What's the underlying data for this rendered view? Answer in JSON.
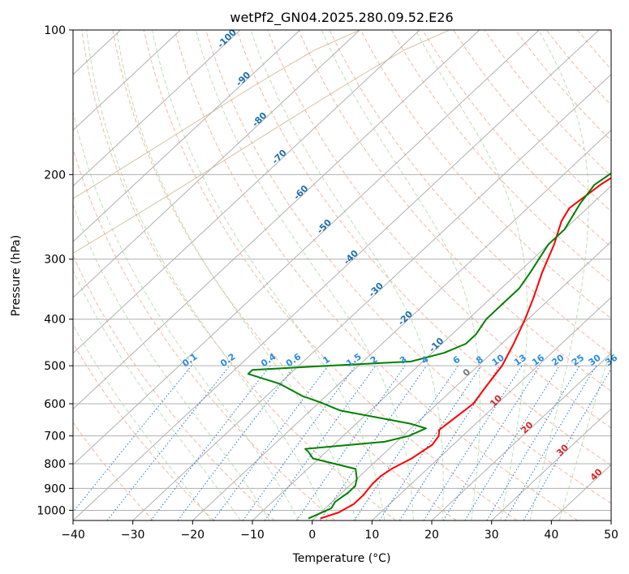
{
  "chart_data": {
    "type": "skew-t",
    "title": "wetPf2_GN04.2025.280.09.52.E26",
    "xlabel": "Temperature (°C)",
    "ylabel": "Pressure (hPa)",
    "xlim": [
      -40,
      50
    ],
    "ylim": [
      1050,
      100
    ],
    "x_ticks": [
      "-40",
      "-30",
      "-20",
      "-10",
      "0",
      "10",
      "20",
      "30",
      "40",
      "50"
    ],
    "y_ticks": [
      "100",
      "200",
      "300",
      "400",
      "500",
      "600",
      "700",
      "800",
      "900",
      "1000"
    ],
    "isotherm_labels": [
      "-100",
      "-90",
      "-80",
      "-70",
      "-60",
      "-50",
      "-40",
      "-30",
      "-20",
      "-10",
      "0",
      "10",
      "20",
      "30",
      "40"
    ],
    "mixing_ratio_labels": [
      "0.1",
      "0.2",
      "0.4",
      "0.6",
      "1",
      "1.5",
      "2",
      "3",
      "4",
      "6",
      "8",
      "10",
      "13",
      "16",
      "20",
      "25",
      "30",
      "36"
    ],
    "series": [
      {
        "name": "temperature",
        "color": "#ff0000",
        "points": [
          [
            1,
            1040
          ],
          [
            3,
            1010
          ],
          [
            4,
            970
          ],
          [
            4,
            930
          ],
          [
            3.5,
            880
          ],
          [
            3.5,
            850
          ],
          [
            4,
            820
          ],
          [
            5.5,
            780
          ],
          [
            6.5,
            730
          ],
          [
            6,
            700
          ],
          [
            5,
            680
          ],
          [
            5.5,
            640
          ],
          [
            6,
            600
          ],
          [
            5,
            550
          ],
          [
            4,
            500
          ],
          [
            2,
            450
          ],
          [
            -0.5,
            400
          ],
          [
            -3,
            360
          ],
          [
            -6,
            320
          ],
          [
            -9,
            280
          ],
          [
            -12,
            250
          ],
          [
            -13,
            235
          ],
          [
            -12,
            210
          ],
          [
            -11,
            198
          ],
          [
            -8,
            180
          ],
          [
            -4,
            155
          ],
          [
            0,
            135
          ],
          [
            3,
            120
          ],
          [
            5,
            110
          ],
          [
            7,
            100
          ]
        ]
      },
      {
        "name": "dewpoint",
        "color": "#008000",
        "points": [
          [
            -1,
            1040
          ],
          [
            0,
            1015
          ],
          [
            1,
            990
          ],
          [
            0.5,
            960
          ],
          [
            1,
            920
          ],
          [
            1,
            890
          ],
          [
            0,
            860
          ],
          [
            -2,
            820
          ],
          [
            -11,
            780
          ],
          [
            -13,
            755
          ],
          [
            -14,
            745
          ],
          [
            -2,
            720
          ],
          [
            1,
            700
          ],
          [
            2.5,
            675
          ],
          [
            -1,
            660
          ],
          [
            -15,
            620
          ],
          [
            -20,
            595
          ],
          [
            -24,
            578
          ],
          [
            -30,
            545
          ],
          [
            -37,
            520
          ],
          [
            -37,
            510
          ],
          [
            -25,
            500
          ],
          [
            -12,
            490
          ],
          [
            -8,
            470
          ],
          [
            -6,
            450
          ],
          [
            -6,
            430
          ],
          [
            -7,
            400
          ],
          [
            -7,
            370
          ],
          [
            -7,
            345
          ],
          [
            -8,
            320
          ],
          [
            -10,
            280
          ],
          [
            -10,
            260
          ],
          [
            -12,
            230
          ],
          [
            -13,
            210
          ],
          [
            -12,
            195
          ],
          [
            -13,
            180
          ],
          [
            -12,
            165
          ],
          [
            -10,
            150
          ],
          [
            -9,
            130
          ],
          [
            -7,
            115
          ],
          [
            -6,
            100
          ]
        ]
      }
    ]
  }
}
